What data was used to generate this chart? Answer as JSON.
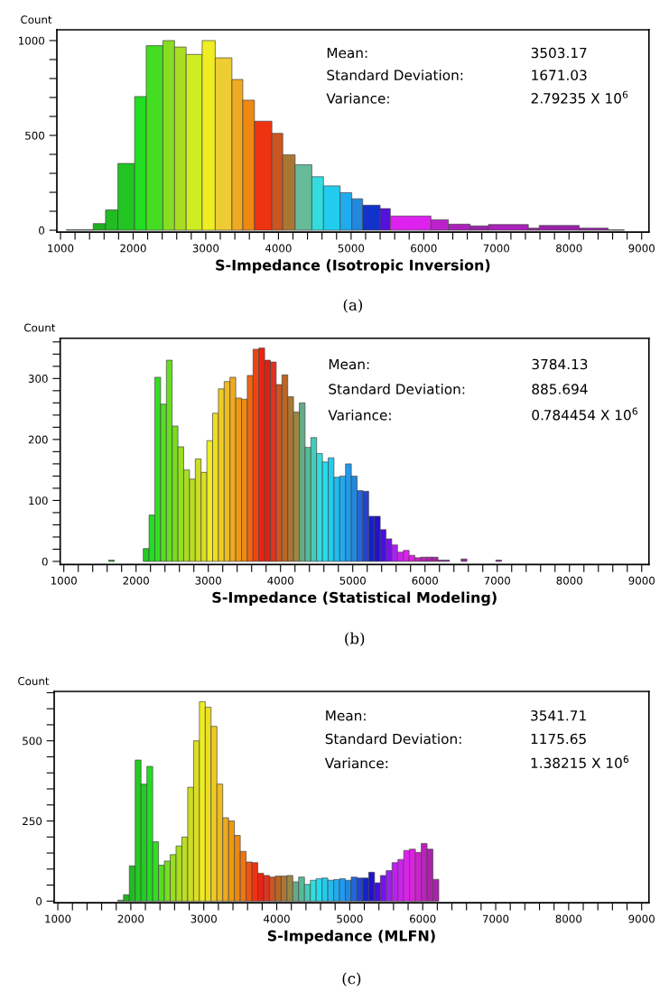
{
  "chart_data": [
    {
      "type": "histogram",
      "xlabel": "S-Impedance (Isotropic Inversion)",
      "ylabel": "Count",
      "subtitle": "(a)",
      "annotations": [
        "Mean:",
        "3503.17",
        "Standard Deviation:",
        "1671.03",
        "Variance:",
        "2.79235 X 10$^{6}$"
      ],
      "bins": [
        1080,
        1450,
        1620,
        1790,
        2020,
        2180,
        2410,
        2570,
        2730,
        2950,
        3130,
        3360,
        3510,
        3670,
        3910,
        4060,
        4230,
        4460,
        4620,
        4850,
        5010,
        5160,
        5400,
        5540,
        6100,
        6340,
        6640,
        6890,
        7440,
        7590,
        8140,
        8540,
        8760
      ],
      "values": [
        3,
        35,
        107,
        352,
        705,
        973,
        1000,
        966,
        927,
        1000,
        909,
        795,
        686,
        575,
        511,
        398,
        345,
        282,
        234,
        198,
        166,
        132,
        114,
        75,
        55,
        32,
        23,
        30,
        11,
        25,
        11,
        2
      ],
      "colors": [
        "#1a9a1a",
        "#1fae1f",
        "#22bb22",
        "#22c422",
        "#22dd22",
        "#44dd22",
        "#88dd22",
        "#aadd22",
        "#ccee22",
        "#eeee22",
        "#eecc33",
        "#eeaa22",
        "#ee8811",
        "#ee3311",
        "#cc5522",
        "#aa7733",
        "#66bb99",
        "#33dddd",
        "#22ccee",
        "#22aaee",
        "#2288dd",
        "#1133cc",
        "#5511dd",
        "#dd22ee",
        "#bb22cc",
        "#aa22bb",
        "#9922aa",
        "#aa22bb",
        "#9922aa",
        "#9922aa",
        "#9922aa",
        "#9922aa"
      ],
      "xlim": [
        950,
        9100
      ],
      "ylim": [
        -10,
        1057
      ],
      "xticks": [
        1000,
        {
          "value": 1200,
          "label": null
        },
        {
          "value": 1400,
          "label": null
        },
        {
          "value": 1600,
          "label": null
        },
        {
          "value": 1800,
          "label": null
        },
        2000,
        {
          "value": 2200,
          "label": null
        },
        {
          "value": 2400,
          "label": null
        },
        {
          "value": 2600,
          "label": null
        },
        {
          "value": 2800,
          "label": null
        },
        3000,
        {
          "value": 3200,
          "label": null
        },
        {
          "value": 3400,
          "label": null
        },
        {
          "value": 3600,
          "label": null
        },
        {
          "value": 3800,
          "label": null
        },
        4000,
        {
          "value": 4200,
          "label": null
        },
        {
          "value": 4400,
          "label": null
        },
        {
          "value": 4600,
          "label": null
        },
        {
          "value": 4800,
          "label": null
        },
        5000,
        {
          "value": 5200,
          "label": null
        },
        {
          "value": 5400,
          "label": null
        },
        {
          "value": 5600,
          "label": null
        },
        {
          "value": 5800,
          "label": null
        },
        6000,
        {
          "value": 6200,
          "label": null
        },
        {
          "value": 6400,
          "label": null
        },
        {
          "value": 6600,
          "label": null
        },
        {
          "value": 6800,
          "label": null
        },
        7000,
        {
          "value": 7200,
          "label": null
        },
        {
          "value": 7400,
          "label": null
        },
        {
          "value": 7600,
          "label": null
        },
        {
          "value": 7800,
          "label": null
        },
        8000,
        {
          "value": 8200,
          "label": null
        },
        {
          "value": 8400,
          "label": null
        },
        {
          "value": 8600,
          "label": null
        },
        {
          "value": 8800,
          "label": null
        },
        9000
      ],
      "yticks": [
        0,
        {
          "value": 100,
          "label": null
        },
        {
          "value": 200,
          "label": null
        },
        {
          "value": 300,
          "label": null
        },
        {
          "value": 400,
          "label": null
        },
        500,
        {
          "value": 600,
          "label": null
        },
        {
          "value": 700,
          "label": null
        },
        {
          "value": 800,
          "label": null
        },
        {
          "value": 900,
          "label": null
        },
        1000
      ],
      "grid": false,
      "legend": false
    },
    {
      "type": "histogram",
      "xlabel": "S-Impedance (Statistical Modeling)",
      "ylabel": "Count",
      "subtitle": "(b)",
      "annotations": [
        "Mean:",
        "3784.13",
        "Standard Deviation:",
        "885.694",
        "Variance:",
        "0.784454 X 10$^{6}$"
      ],
      "bins": [
        1620,
        1700,
        1780,
        1860,
        1940,
        2020,
        2100,
        2180,
        2260,
        2340,
        2420,
        2500,
        2580,
        2660,
        2740,
        2820,
        2900,
        2980,
        3060,
        3140,
        3220,
        3300,
        3380,
        3460,
        3540,
        3620,
        3700,
        3780,
        3860,
        3940,
        4020,
        4100,
        4180,
        4260,
        4340,
        4420,
        4500,
        4580,
        4660,
        4740,
        4820,
        4900,
        4980,
        5060,
        5140,
        5220,
        5300,
        5380,
        5460,
        5540,
        5620,
        5700,
        5780,
        5860,
        5940,
        6020,
        6100,
        6180,
        6260,
        6340,
        6420,
        6500,
        6580,
        6660,
        6740,
        6820,
        6900,
        6980,
        7060
      ],
      "values": [
        2,
        0,
        0,
        0,
        0,
        0,
        21,
        76,
        302,
        258,
        330,
        222,
        188,
        150,
        135,
        168,
        146,
        198,
        243,
        283,
        295,
        302,
        268,
        266,
        305,
        348,
        350,
        330,
        327,
        290,
        306,
        270,
        245,
        260,
        187,
        203,
        177,
        163,
        170,
        138,
        140,
        160,
        140,
        116,
        115,
        74,
        74,
        52,
        37,
        27,
        15,
        18,
        10,
        6,
        7,
        7,
        7,
        2,
        2,
        0,
        0,
        4,
        0,
        0,
        0,
        0,
        0,
        2
      ],
      "colors": [
        "#22aa22",
        "#22aa22",
        "#22aa22",
        "#22aa22",
        "#22aa22",
        "#22aa22",
        "#22cc22",
        "#22dd22",
        "#33dd22",
        "#55dd22",
        "#66dd22",
        "#77dd22",
        "#99dd22",
        "#aadd22",
        "#bbdd22",
        "#ccdd22",
        "#dddd22",
        "#eeee22",
        "#eedd22",
        "#eecc22",
        "#eebb22",
        "#eeaa22",
        "#ee9911",
        "#ee8811",
        "#ee6611",
        "#ee4411",
        "#ee2211",
        "#dd2211",
        "#dd3322",
        "#cc5522",
        "#bb6622",
        "#aa7733",
        "#998844",
        "#66aa88",
        "#55bb99",
        "#44ccbb",
        "#33dddd",
        "#22ddee",
        "#22ccee",
        "#22bbee",
        "#22aaee",
        "#2299ee",
        "#2288dd",
        "#2266dd",
        "#2244cc",
        "#1122cc",
        "#2211cc",
        "#4411dd",
        "#7711ee",
        "#aa22ee",
        "#cc22ee",
        "#dd22ee",
        "#dd22dd",
        "#cc22cc",
        "#bb22bb",
        "#aa22aa",
        "#aa22aa",
        "#9922aa",
        "#9922aa",
        "#9922aa",
        "#9922aa",
        "#9922aa",
        "#9922aa",
        "#9922aa",
        "#9922aa",
        "#9922aa",
        "#9922aa",
        "#9922aa"
      ],
      "xlim": [
        950,
        9100
      ],
      "ylim": [
        -5,
        366
      ],
      "xticks": [
        1000,
        {
          "value": 1200,
          "label": null
        },
        {
          "value": 1400,
          "label": null
        },
        {
          "value": 1600,
          "label": null
        },
        {
          "value": 1800,
          "label": null
        },
        2000,
        {
          "value": 2200,
          "label": null
        },
        {
          "value": 2400,
          "label": null
        },
        {
          "value": 2600,
          "label": null
        },
        {
          "value": 2800,
          "label": null
        },
        3000,
        {
          "value": 3200,
          "label": null
        },
        {
          "value": 3400,
          "label": null
        },
        {
          "value": 3600,
          "label": null
        },
        {
          "value": 3800,
          "label": null
        },
        4000,
        {
          "value": 4200,
          "label": null
        },
        {
          "value": 4400,
          "label": null
        },
        {
          "value": 4600,
          "label": null
        },
        {
          "value": 4800,
          "label": null
        },
        5000,
        {
          "value": 5200,
          "label": null
        },
        {
          "value": 5400,
          "label": null
        },
        {
          "value": 5600,
          "label": null
        },
        {
          "value": 5800,
          "label": null
        },
        6000,
        {
          "value": 6200,
          "label": null
        },
        {
          "value": 6400,
          "label": null
        },
        {
          "value": 6600,
          "label": null
        },
        {
          "value": 6800,
          "label": null
        },
        7000,
        {
          "value": 7200,
          "label": null
        },
        {
          "value": 7400,
          "label": null
        },
        {
          "value": 7600,
          "label": null
        },
        {
          "value": 7800,
          "label": null
        },
        8000,
        {
          "value": 8200,
          "label": null
        },
        {
          "value": 8400,
          "label": null
        },
        {
          "value": 8600,
          "label": null
        },
        {
          "value": 8800,
          "label": null
        },
        9000
      ],
      "yticks": [
        0,
        {
          "value": 20,
          "label": null
        },
        {
          "value": 40,
          "label": null
        },
        {
          "value": 60,
          "label": null
        },
        {
          "value": 80,
          "label": null
        },
        100,
        {
          "value": 120,
          "label": null
        },
        {
          "value": 140,
          "label": null
        },
        {
          "value": 160,
          "label": null
        },
        {
          "value": 180,
          "label": null
        },
        200,
        {
          "value": 220,
          "label": null
        },
        {
          "value": 240,
          "label": null
        },
        {
          "value": 260,
          "label": null
        },
        {
          "value": 280,
          "label": null
        },
        300,
        {
          "value": 320,
          "label": null
        },
        {
          "value": 340,
          "label": null
        },
        {
          "value": 360,
          "label": null
        }
      ],
      "grid": false,
      "legend": false
    },
    {
      "type": "histogram",
      "xlabel": "S-Impedance (MLFN)",
      "ylabel": "Count",
      "subtitle": "(c)",
      "annotations": [
        "Mean:",
        "3541.71",
        "Standard Deviation:",
        "1175.65",
        "Variance:",
        "1.38215 X 10$^{6}$"
      ],
      "bins": [
        1820,
        1900,
        1980,
        2060,
        2140,
        2220,
        2300,
        2380,
        2460,
        2540,
        2620,
        2700,
        2780,
        2860,
        2940,
        3020,
        3100,
        3180,
        3260,
        3340,
        3420,
        3500,
        3580,
        3660,
        3740,
        3820,
        3900,
        3980,
        4060,
        4140,
        4220,
        4300,
        4380,
        4460,
        4540,
        4620,
        4700,
        4780,
        4860,
        4940,
        5020,
        5100,
        5180,
        5260,
        5340,
        5420,
        5500,
        5580,
        5660,
        5740,
        5820,
        5900,
        5980,
        6060,
        6140,
        6220
      ],
      "values": [
        3,
        20,
        110,
        440,
        365,
        420,
        185,
        112,
        125,
        145,
        172,
        200,
        355,
        500,
        622,
        605,
        545,
        365,
        260,
        250,
        205,
        155,
        122,
        120,
        87,
        80,
        75,
        78,
        78,
        80,
        60,
        75,
        52,
        65,
        70,
        72,
        65,
        67,
        70,
        65,
        75,
        72,
        72,
        90,
        57,
        80,
        95,
        120,
        130,
        158,
        162,
        152,
        180,
        162,
        68
      ],
      "colors": [
        "#22aa22",
        "#22b022",
        "#22bb22",
        "#22cc22",
        "#22cc22",
        "#22dd22",
        "#33dd22",
        "#55dd22",
        "#77dd22",
        "#99dd22",
        "#aadd22",
        "#bbdd22",
        "#ccdd22",
        "#dddd22",
        "#eeee22",
        "#eedd22",
        "#eecc22",
        "#eebb22",
        "#eeaa22",
        "#ee9911",
        "#ee8811",
        "#ee7711",
        "#ee5511",
        "#ee3311",
        "#ee2211",
        "#dd3322",
        "#cc5522",
        "#bb6622",
        "#aa7733",
        "#998844",
        "#66aa88",
        "#55bb99",
        "#44ccbb",
        "#33dddd",
        "#22ddee",
        "#22ccee",
        "#22bbee",
        "#22aaee",
        "#2299ee",
        "#2288dd",
        "#2266dd",
        "#2244cc",
        "#1122cc",
        "#2211cc",
        "#4411dd",
        "#7711ee",
        "#9922ee",
        "#bb22ee",
        "#cc22ee",
        "#dd22ee",
        "#dd22dd",
        "#cc22cc",
        "#bb22bb",
        "#aa22aa",
        "#aa22aa"
      ],
      "xlim": [
        950,
        9100
      ],
      "ylim": [
        -5,
        654
      ],
      "xticks": [
        1000,
        {
          "value": 1200,
          "label": null
        },
        {
          "value": 1400,
          "label": null
        },
        {
          "value": 1600,
          "label": null
        },
        {
          "value": 1800,
          "label": null
        },
        2000,
        {
          "value": 2200,
          "label": null
        },
        {
          "value": 2400,
          "label": null
        },
        {
          "value": 2600,
          "label": null
        },
        {
          "value": 2800,
          "label": null
        },
        3000,
        {
          "value": 3200,
          "label": null
        },
        {
          "value": 3400,
          "label": null
        },
        {
          "value": 3600,
          "label": null
        },
        {
          "value": 3800,
          "label": null
        },
        4000,
        {
          "value": 4200,
          "label": null
        },
        {
          "value": 4400,
          "label": null
        },
        {
          "value": 4600,
          "label": null
        },
        {
          "value": 4800,
          "label": null
        },
        5000,
        {
          "value": 5200,
          "label": null
        },
        {
          "value": 5400,
          "label": null
        },
        {
          "value": 5600,
          "label": null
        },
        {
          "value": 5800,
          "label": null
        },
        6000,
        {
          "value": 6200,
          "label": null
        },
        {
          "value": 6400,
          "label": null
        },
        {
          "value": 6600,
          "label": null
        },
        {
          "value": 6800,
          "label": null
        },
        7000,
        {
          "value": 7200,
          "label": null
        },
        {
          "value": 7400,
          "label": null
        },
        {
          "value": 7600,
          "label": null
        },
        {
          "value": 7800,
          "label": null
        },
        8000,
        {
          "value": 8200,
          "label": null
        },
        {
          "value": 8400,
          "label": null
        },
        {
          "value": 8600,
          "label": null
        },
        {
          "value": 8800,
          "label": null
        },
        9000
      ],
      "yticks": [
        0,
        {
          "value": 50,
          "label": null
        },
        {
          "value": 100,
          "label": null
        },
        {
          "value": 150,
          "label": null
        },
        {
          "value": 200,
          "label": null
        },
        250,
        {
          "value": 300,
          "label": null
        },
        {
          "value": 350,
          "label": null
        },
        {
          "value": 400,
          "label": null
        },
        {
          "value": 450,
          "label": null
        },
        500,
        {
          "value": 550,
          "label": null
        },
        {
          "value": 600,
          "label": null
        },
        {
          "value": 650,
          "label": null
        }
      ],
      "grid": false,
      "legend": false
    }
  ]
}
